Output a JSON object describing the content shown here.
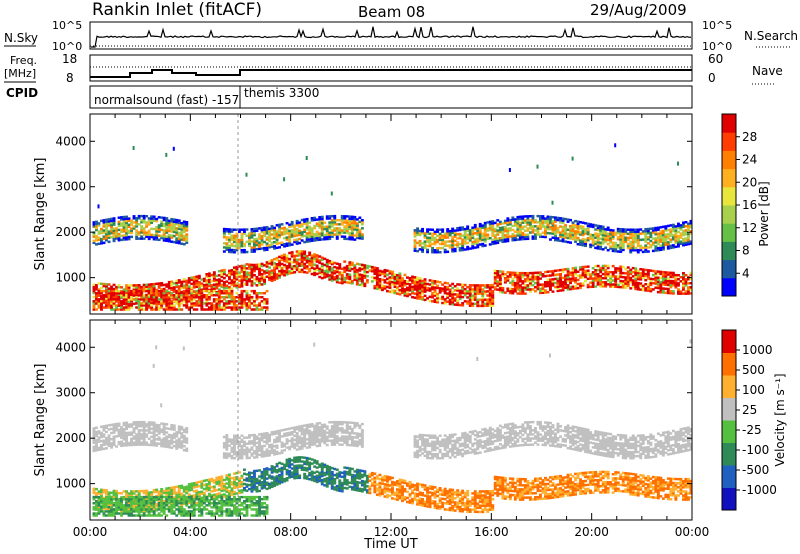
{
  "header": {
    "station": "Rankin Inlet (fitACF)",
    "beam": "Beam 08",
    "date": "29/Aug/2009"
  },
  "top_panels": {
    "nsky_label": "N.Sky",
    "nsky_ticks": [
      "10^5",
      "10^0"
    ],
    "nsearch_label": "N.Search",
    "freq_label_1": "Freq.",
    "freq_label_2": "[MHz]",
    "freq_ticks": [
      "18",
      "8"
    ],
    "nave_ticks": [
      "60",
      "0"
    ],
    "nave_label": "Nave",
    "cpid_label": "CPID",
    "cpid_program_1": "normalsound (fast)  -157",
    "cpid_program_2": "themis 3300"
  },
  "chart_data": [
    {
      "type": "heatmap",
      "name": "power-panel",
      "ylabel": "Slant Range [km]",
      "yticks": [
        "4000",
        "3000",
        "2000",
        "1000"
      ],
      "ylim": [
        200,
        4600
      ],
      "xlim": [
        0,
        24
      ],
      "colorbar_title": "Power [dB]",
      "colorbar_ticks": [
        "28",
        "24",
        "20",
        "16",
        "12",
        "8",
        "4"
      ],
      "colors": [
        "#0000ff",
        "#1e5aa0",
        "#2e8b57",
        "#66c048",
        "#a8d04c",
        "#e8e63c",
        "#ffb020",
        "#ff7f00",
        "#ff3d00",
        "#e00000"
      ]
    },
    {
      "type": "heatmap",
      "name": "velocity-panel",
      "ylabel": "Slant Range [km]",
      "yticks": [
        "4000",
        "3000",
        "2000",
        "1000"
      ],
      "ylim": [
        200,
        4600
      ],
      "xlim": [
        0,
        24
      ],
      "xticks": [
        "00:00",
        "04:00",
        "08:00",
        "12:00",
        "16:00",
        "20:00",
        "00:00"
      ],
      "xlabel": "Time UT",
      "colorbar_title": "Velocity [m s⁻¹]",
      "colorbar_ticks": [
        "1000",
        "500",
        "100",
        "25",
        "-25",
        "-100",
        "-500",
        "-1000"
      ],
      "colors": [
        "#1010c0",
        "#2060c0",
        "#2e8b57",
        "#55c040",
        "#c0c0c0",
        "#ffb030",
        "#ff7000",
        "#e00000"
      ]
    }
  ]
}
